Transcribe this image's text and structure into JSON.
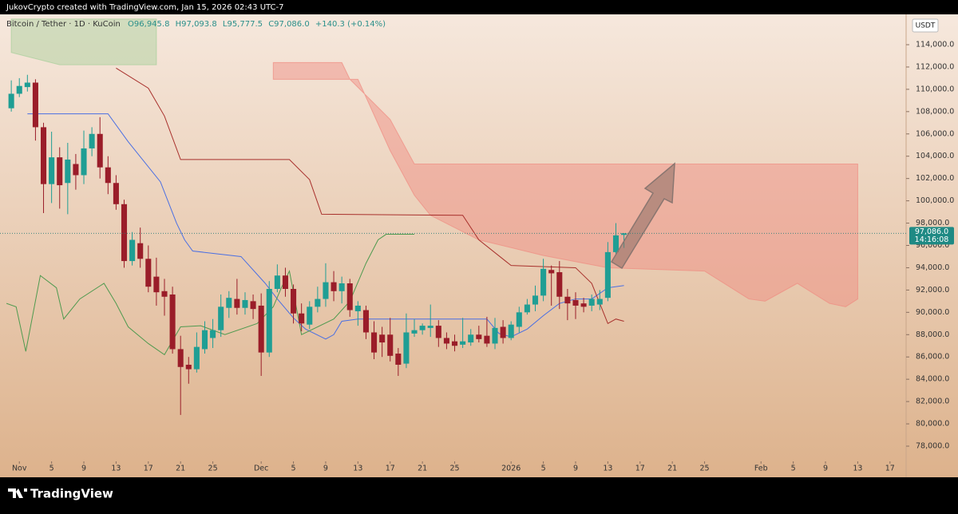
{
  "header": "JukovCrypto created with TradingView.com, Jan 15, 2026 02:43 UTC-7",
  "footer": "TradingView",
  "chart_data": {
    "type": "candlestick",
    "symbol": "Bitcoin / Tether · 1D · KuCoin",
    "legend_values": [
      "O96,945.8",
      "H97,093.8",
      "L95,777.5",
      "C97,086.0",
      "+140.3 (+0.14%)"
    ],
    "currency": "USDT",
    "last_price": {
      "value": 97086,
      "label": "97,086.0"
    },
    "countdown": "14:16:08",
    "up_color": "#1f9e94",
    "down_color": "#9a1d29",
    "xlim": [
      -2.4,
      110
    ],
    "ylim": [
      76640,
      116720
    ],
    "xticks": [
      {
        "value": 0,
        "label": "Nov"
      },
      {
        "value": 4,
        "label": "5"
      },
      {
        "value": 8,
        "label": "9"
      },
      {
        "value": 12,
        "label": "13"
      },
      {
        "value": 16,
        "label": "17"
      },
      {
        "value": 20,
        "label": "21"
      },
      {
        "value": 24,
        "label": "25"
      },
      {
        "value": 30,
        "label": "Dec"
      },
      {
        "value": 34,
        "label": "5"
      },
      {
        "value": 38,
        "label": "9"
      },
      {
        "value": 42,
        "label": "13"
      },
      {
        "value": 46,
        "label": "17"
      },
      {
        "value": 50,
        "label": "21"
      },
      {
        "value": 54,
        "label": "25"
      },
      {
        "value": 61,
        "label": "2026"
      },
      {
        "value": 65,
        "label": "5"
      },
      {
        "value": 69,
        "label": "9"
      },
      {
        "value": 73,
        "label": "13"
      },
      {
        "value": 77,
        "label": "17"
      },
      {
        "value": 81,
        "label": "21"
      },
      {
        "value": 85,
        "label": "25"
      },
      {
        "value": 92,
        "label": "Feb"
      },
      {
        "value": 96,
        "label": "5"
      },
      {
        "value": 100,
        "label": "9"
      },
      {
        "value": 104,
        "label": "13"
      },
      {
        "value": 108,
        "label": "17"
      }
    ],
    "yticks": [
      {
        "value": 78000,
        "label": "78,000.0"
      },
      {
        "value": 80000,
        "label": "80,000.0"
      },
      {
        "value": 82000,
        "label": "82,000.0"
      },
      {
        "value": 84000,
        "label": "84,000.0"
      },
      {
        "value": 86000,
        "label": "86,000.0"
      },
      {
        "value": 88000,
        "label": "88,000.0"
      },
      {
        "value": 90000,
        "label": "90,000.0"
      },
      {
        "value": 92000,
        "label": "92,000.0"
      },
      {
        "value": 94000,
        "label": "94,000.0"
      },
      {
        "value": 96000,
        "label": "96,000.0"
      },
      {
        "value": 98000,
        "label": "98,000.0"
      },
      {
        "value": 100000,
        "label": "100,000.0"
      },
      {
        "value": 102000,
        "label": "102,000.0"
      },
      {
        "value": 104000,
        "label": "104,000.0"
      },
      {
        "value": 106000,
        "label": "106,000.0"
      },
      {
        "value": 108000,
        "label": "108,000.0"
      },
      {
        "value": 110000,
        "label": "110,000.0"
      },
      {
        "value": 112000,
        "label": "112,000.0"
      },
      {
        "value": 114000,
        "label": "114,000.0"
      }
    ],
    "x": [
      -1,
      0,
      1,
      2,
      3,
      4,
      5,
      6,
      7,
      8,
      9,
      10,
      11,
      12,
      13,
      14,
      15,
      16,
      17,
      18,
      19,
      20,
      21,
      22,
      23,
      24,
      25,
      26,
      27,
      28,
      29,
      30,
      31,
      32,
      33,
      34,
      35,
      36,
      37,
      38,
      39,
      40,
      41,
      42,
      43,
      44,
      45,
      46,
      47,
      48,
      49,
      50,
      51,
      52,
      53,
      54,
      55,
      56,
      57,
      58,
      59,
      60,
      61,
      62,
      63,
      64,
      65,
      66,
      67,
      68,
      69,
      70,
      71,
      72,
      73,
      74,
      75
    ],
    "candles": [
      [
        108300,
        110800,
        108000,
        109600
      ],
      [
        109600,
        111000,
        109300,
        110300
      ],
      [
        110200,
        111300,
        109800,
        110600
      ],
      [
        110600,
        110900,
        105400,
        106600
      ],
      [
        106600,
        107000,
        98900,
        101500
      ],
      [
        101500,
        106200,
        99800,
        103900
      ],
      [
        103900,
        104800,
        99300,
        101400
      ],
      [
        101600,
        105200,
        98800,
        103700
      ],
      [
        103300,
        104200,
        101000,
        102300
      ],
      [
        102300,
        106300,
        101500,
        104700
      ],
      [
        104700,
        106600,
        104000,
        106000
      ],
      [
        106000,
        107500,
        102000,
        103000
      ],
      [
        103000,
        104000,
        100600,
        101600
      ],
      [
        101600,
        102300,
        99200,
        99700
      ],
      [
        99700,
        100100,
        94000,
        94600
      ],
      [
        94600,
        97200,
        94200,
        96500
      ],
      [
        96200,
        97600,
        94000,
        94800
      ],
      [
        94800,
        96000,
        91800,
        92300
      ],
      [
        93200,
        94900,
        90600,
        91800
      ],
      [
        91900,
        93000,
        89700,
        91400
      ],
      [
        91600,
        92300,
        86300,
        86700
      ],
      [
        86700,
        87900,
        80800,
        85100
      ],
      [
        85300,
        86000,
        83600,
        84900
      ],
      [
        84900,
        88200,
        84600,
        86900
      ],
      [
        86700,
        89200,
        86300,
        88400
      ],
      [
        87700,
        89400,
        86800,
        88400
      ],
      [
        88400,
        91600,
        87800,
        90500
      ],
      [
        90400,
        91900,
        89500,
        91300
      ],
      [
        91200,
        93000,
        89800,
        90400
      ],
      [
        90400,
        91800,
        89800,
        91100
      ],
      [
        91000,
        91600,
        89400,
        90300
      ],
      [
        90600,
        91700,
        84300,
        86400
      ],
      [
        86400,
        92800,
        86000,
        92100
      ],
      [
        92100,
        94300,
        91800,
        93300
      ],
      [
        93300,
        94000,
        91400,
        92100
      ],
      [
        92100,
        92500,
        89000,
        89900
      ],
      [
        89900,
        90800,
        88300,
        89000
      ],
      [
        88900,
        91000,
        88500,
        90500
      ],
      [
        90500,
        92300,
        90000,
        91200
      ],
      [
        91200,
        94400,
        90500,
        92700
      ],
      [
        92700,
        93700,
        91000,
        91900
      ],
      [
        91900,
        93200,
        90800,
        92600
      ],
      [
        92600,
        93000,
        89600,
        90200
      ],
      [
        90100,
        91000,
        88800,
        90600
      ],
      [
        90200,
        90600,
        87600,
        88200
      ],
      [
        88200,
        89200,
        85800,
        86400
      ],
      [
        88000,
        88700,
        86000,
        87300
      ],
      [
        88000,
        89500,
        85600,
        86100
      ],
      [
        86300,
        86800,
        84300,
        85300
      ],
      [
        85400,
        89900,
        85000,
        88200
      ],
      [
        88100,
        89400,
        87800,
        88400
      ],
      [
        88400,
        89000,
        88000,
        88800
      ],
      [
        88600,
        90700,
        87800,
        88800
      ],
      [
        88800,
        89300,
        86900,
        87700
      ],
      [
        87700,
        88200,
        86700,
        87200
      ],
      [
        87400,
        88000,
        86500,
        87000
      ],
      [
        87100,
        89500,
        86800,
        87400
      ],
      [
        87300,
        88500,
        87000,
        88000
      ],
      [
        88000,
        88800,
        87300,
        87600
      ],
      [
        87900,
        89600,
        86900,
        87200
      ],
      [
        87200,
        89500,
        86700,
        88600
      ],
      [
        88700,
        89300,
        87200,
        87700
      ],
      [
        87700,
        89200,
        87500,
        88900
      ],
      [
        88700,
        90500,
        88200,
        90000
      ],
      [
        90000,
        91200,
        89800,
        90700
      ],
      [
        90700,
        92400,
        90100,
        91500
      ],
      [
        91500,
        94800,
        91000,
        93900
      ],
      [
        93800,
        94200,
        90600,
        93500
      ],
      [
        93600,
        94600,
        90300,
        91400
      ],
      [
        91400,
        92100,
        89300,
        90800
      ],
      [
        91100,
        91800,
        89400,
        90600
      ],
      [
        90800,
        91300,
        90000,
        90500
      ],
      [
        90600,
        91600,
        90100,
        91200
      ],
      [
        90700,
        92000,
        90200,
        91200
      ],
      [
        91300,
        96300,
        91000,
        95400
      ],
      [
        95400,
        98000,
        95200,
        96900
      ],
      [
        96945.8,
        97093.8,
        95777.5,
        97086
      ]
    ],
    "lines": [
      {
        "color": "#4a6fe3",
        "x": [
          1,
          11,
          13.5,
          17.5,
          19.5,
          20.5,
          21.5,
          27.5,
          30.5,
          32,
          34,
          35.5,
          38,
          39,
          40,
          42,
          58,
          59.5,
          61,
          63,
          65,
          67,
          69,
          71,
          73,
          75
        ],
        "values": [
          107800,
          107800,
          105300,
          101700,
          98000,
          96500,
          95500,
          95000,
          92600,
          91200,
          89500,
          88500,
          87600,
          88000,
          89200,
          89400,
          89400,
          88100,
          87800,
          88500,
          89700,
          90800,
          91200,
          91200,
          92200,
          92400
        ]
      },
      {
        "color": "#a8302c",
        "x": [
          12,
          16,
          18,
          20,
          33.5,
          36,
          37.5,
          55,
          57,
          61,
          69,
          71,
          73,
          74,
          75
        ],
        "values": [
          111900,
          110100,
          107600,
          103700,
          103700,
          101900,
          98800,
          98700,
          96500,
          94200,
          94000,
          92600,
          89000,
          89400,
          89200
        ]
      },
      {
        "color": "#4f9a4f",
        "x": [
          -1.6,
          -0.4,
          0.8,
          2.6,
          4.6,
          5.5,
          7.5,
          10.5,
          12,
          13.5,
          16,
          18,
          20,
          22.5,
          25.5,
          29.5,
          31.5,
          32.5,
          33.5,
          35,
          39,
          41,
          43,
          44.5,
          45.5,
          49
        ],
        "values": [
          90800,
          90500,
          86500,
          93300,
          92200,
          89400,
          91200,
          92600,
          90800,
          88700,
          87200,
          86200,
          88700,
          88800,
          88000,
          89000,
          90500,
          92200,
          93700,
          88000,
          89400,
          91000,
          94400,
          96500,
          97000,
          97000
        ]
      }
    ],
    "clouds": [
      {
        "color": "#f08a80",
        "x_upper": [
          31.5,
          40,
          41,
          46,
          49,
          104
        ],
        "upper": [
          112400,
          112400,
          110900,
          107300,
          103300,
          103300
        ],
        "x_lower": [
          31.5,
          42,
          46,
          49,
          51,
          57,
          65,
          73,
          85,
          90.5,
          92.5,
          96.5,
          100.5,
          102.5,
          104
        ],
        "lower": [
          110900,
          110900,
          104500,
          100500,
          98700,
          96500,
          95100,
          94000,
          93700,
          91200,
          91000,
          92600,
          90800,
          90500,
          91200
        ]
      },
      {
        "color": "#a6cf9a",
        "x_upper": [
          -1,
          17
        ],
        "upper": [
          116300,
          116300
        ],
        "x_lower": [
          -1,
          5,
          17
        ],
        "lower": [
          113300,
          112200,
          112200
        ]
      }
    ]
  }
}
